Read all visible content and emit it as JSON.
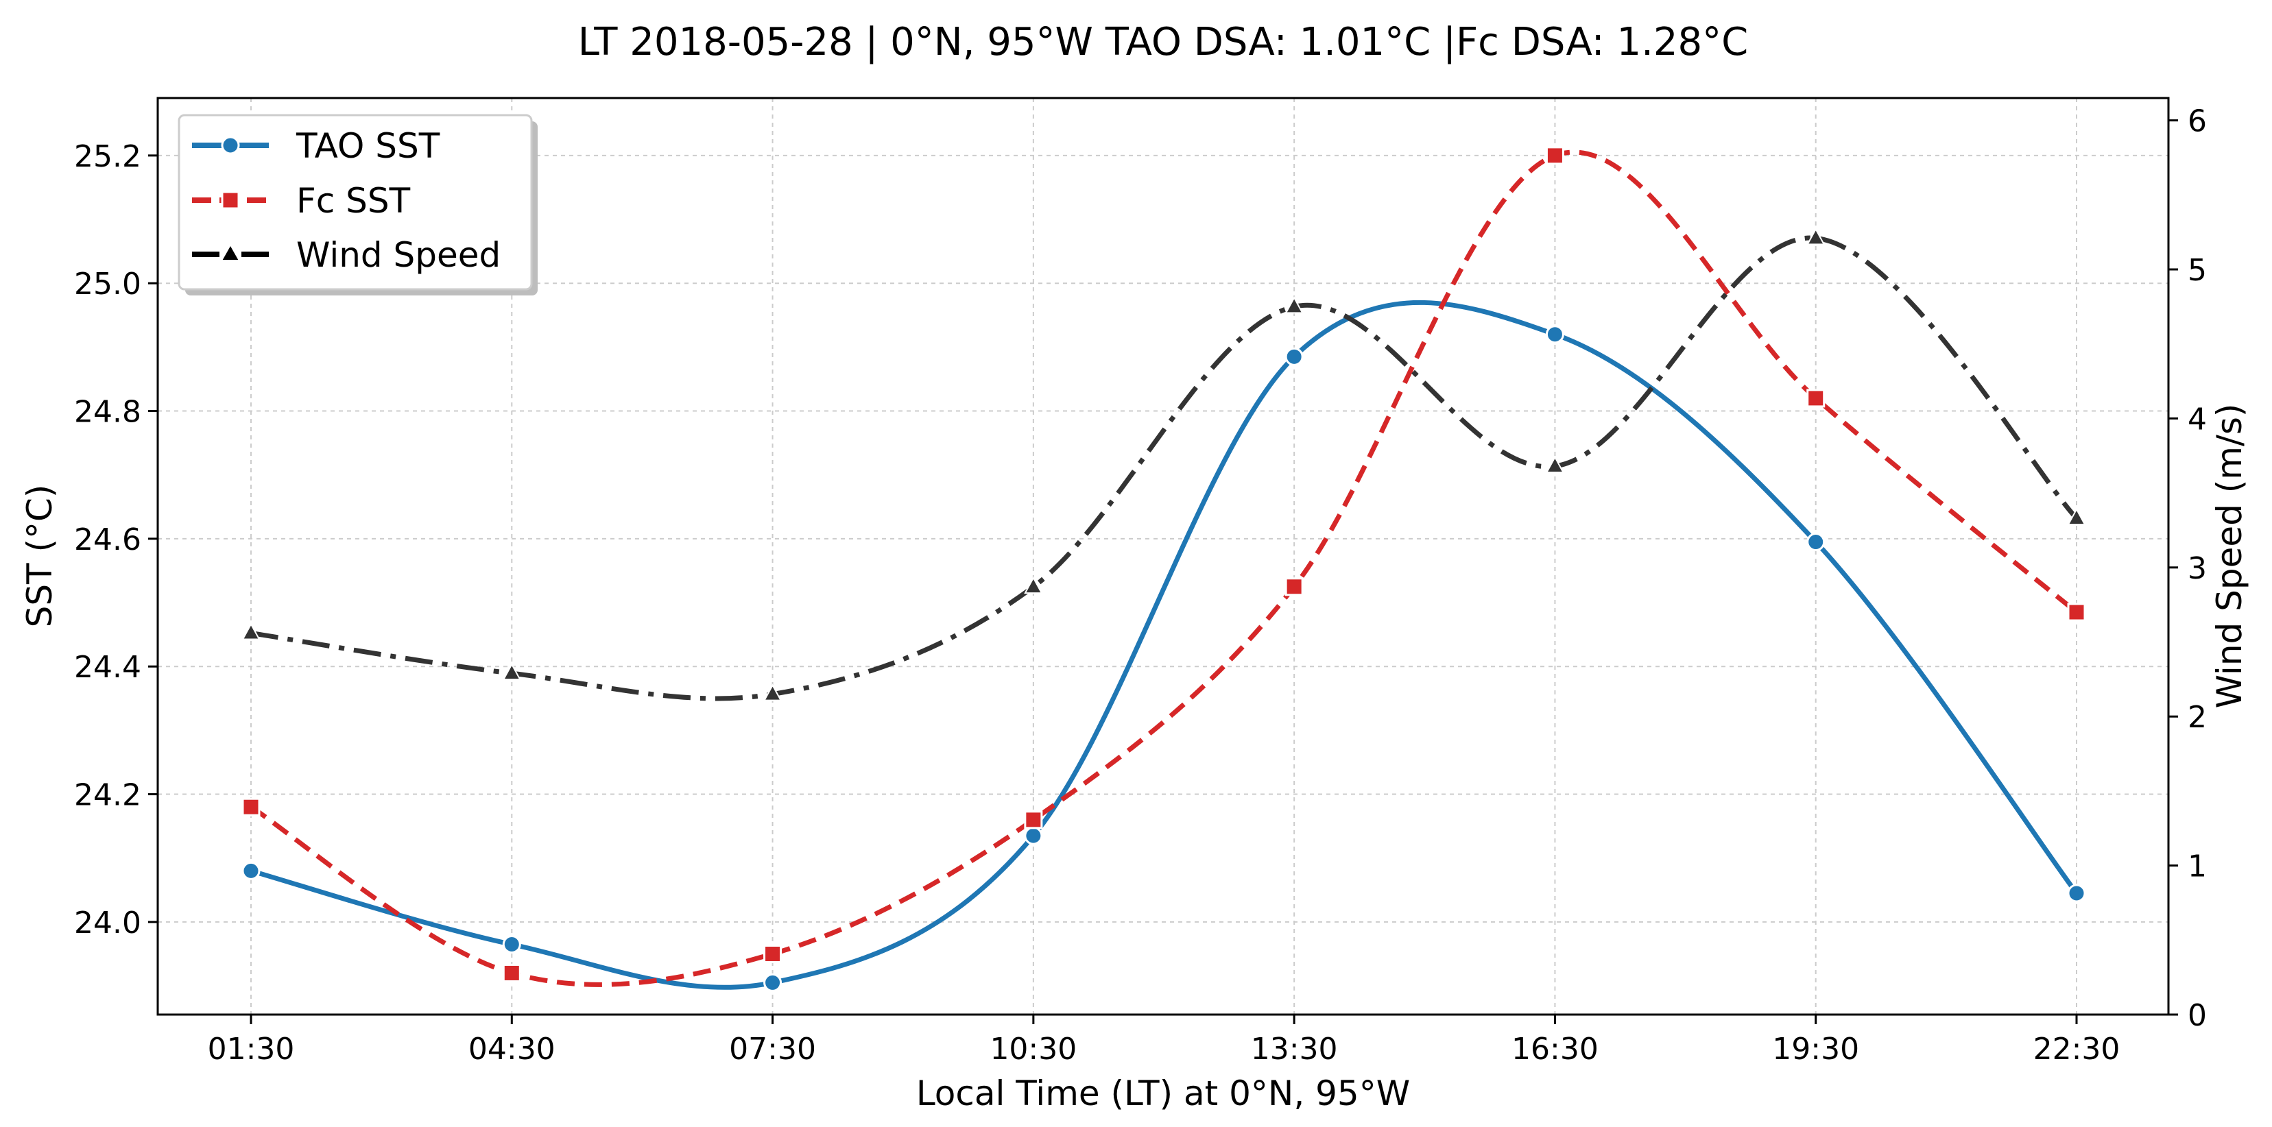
{
  "chart_data": {
    "type": "line",
    "title": "LT 2018-05-28 | 0°N, 95°W TAO DSA: 1.01°C |Fc DSA: 1.28°C",
    "xlabel": "Local Time (LT) at 0°N, 95°W",
    "ylabel_left": "SST (°C)",
    "ylabel_right": "Wind Speed (m/s)",
    "categories": [
      "01:30",
      "04:30",
      "07:30",
      "10:30",
      "13:30",
      "16:30",
      "19:30",
      "22:30"
    ],
    "y_left": {
      "min": 23.855,
      "max": 25.29,
      "ticks": [
        24.0,
        24.2,
        24.4,
        24.6,
        24.8,
        25.0,
        25.2
      ],
      "tick_labels": [
        "24.0",
        "24.2",
        "24.4",
        "24.6",
        "24.8",
        "25.0",
        "25.2"
      ]
    },
    "y_right": {
      "min": 0,
      "max": 6.15,
      "ticks": [
        0,
        1,
        2,
        3,
        4,
        5,
        6
      ],
      "tick_labels": [
        "0",
        "1",
        "2",
        "3",
        "4",
        "5",
        "6"
      ]
    },
    "grid": true,
    "legend_position": "top-left",
    "series": [
      {
        "name": "TAO SST",
        "axis": "left",
        "color": "#1f77b4",
        "marker": "circle",
        "dash": "solid",
        "values": [
          24.08,
          23.965,
          23.905,
          24.135,
          24.885,
          24.92,
          24.595,
          24.045
        ]
      },
      {
        "name": "Fc SST",
        "axis": "left",
        "color": "#d62728",
        "marker": "square",
        "dash": "dashed",
        "values": [
          24.18,
          23.92,
          23.95,
          24.16,
          24.525,
          25.2,
          24.82,
          24.485
        ]
      },
      {
        "name": "Wind Speed",
        "axis": "right",
        "color": "#333333",
        "marker": "triangle",
        "dash": "dashdot",
        "values": [
          2.56,
          2.29,
          2.15,
          2.87,
          4.75,
          3.68,
          5.21,
          3.33
        ]
      }
    ]
  }
}
